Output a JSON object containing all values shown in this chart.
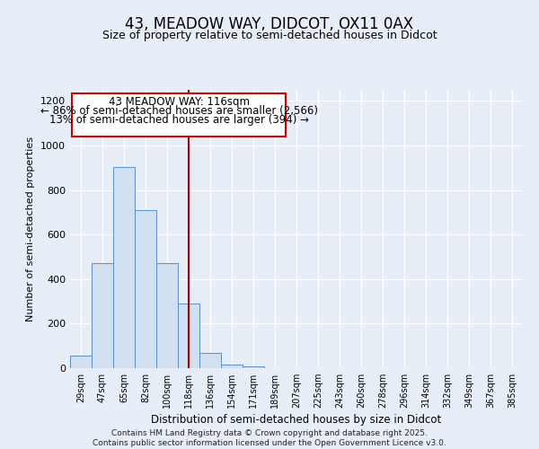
{
  "title": "43, MEADOW WAY, DIDCOT, OX11 0AX",
  "subtitle": "Size of property relative to semi-detached houses in Didcot",
  "xlabel": "Distribution of semi-detached houses by size in Didcot",
  "ylabel": "Number of semi-detached properties",
  "bar_labels": [
    "29sqm",
    "47sqm",
    "65sqm",
    "82sqm",
    "100sqm",
    "118sqm",
    "136sqm",
    "154sqm",
    "171sqm",
    "189sqm",
    "207sqm",
    "225sqm",
    "243sqm",
    "260sqm",
    "278sqm",
    "296sqm",
    "314sqm",
    "332sqm",
    "349sqm",
    "367sqm",
    "385sqm"
  ],
  "bar_values": [
    55,
    470,
    905,
    710,
    470,
    290,
    70,
    15,
    10,
    0,
    0,
    0,
    0,
    0,
    0,
    0,
    0,
    0,
    0,
    0,
    0
  ],
  "bar_color": "#d0e0f0",
  "bar_edge_color": "#5b8ec4",
  "vline_x_index": 5,
  "vline_color": "#aa0000",
  "annotation_title": "43 MEADOW WAY: 116sqm",
  "annotation_line1": "← 86% of semi-detached houses are smaller (2,566)",
  "annotation_line2": "13% of semi-detached houses are larger (394) →",
  "annotation_box_color": "#cc0000",
  "ylim": [
    0,
    1250
  ],
  "yticks": [
    0,
    200,
    400,
    600,
    800,
    1000,
    1200
  ],
  "background_color": "#e8eef8",
  "grid_color": "#ffffff",
  "footer_line1": "Contains HM Land Registry data © Crown copyright and database right 2025.",
  "footer_line2": "Contains public sector information licensed under the Open Government Licence v3.0.",
  "title_fontsize": 12,
  "subtitle_fontsize": 9,
  "annotation_fontsize": 8.5
}
